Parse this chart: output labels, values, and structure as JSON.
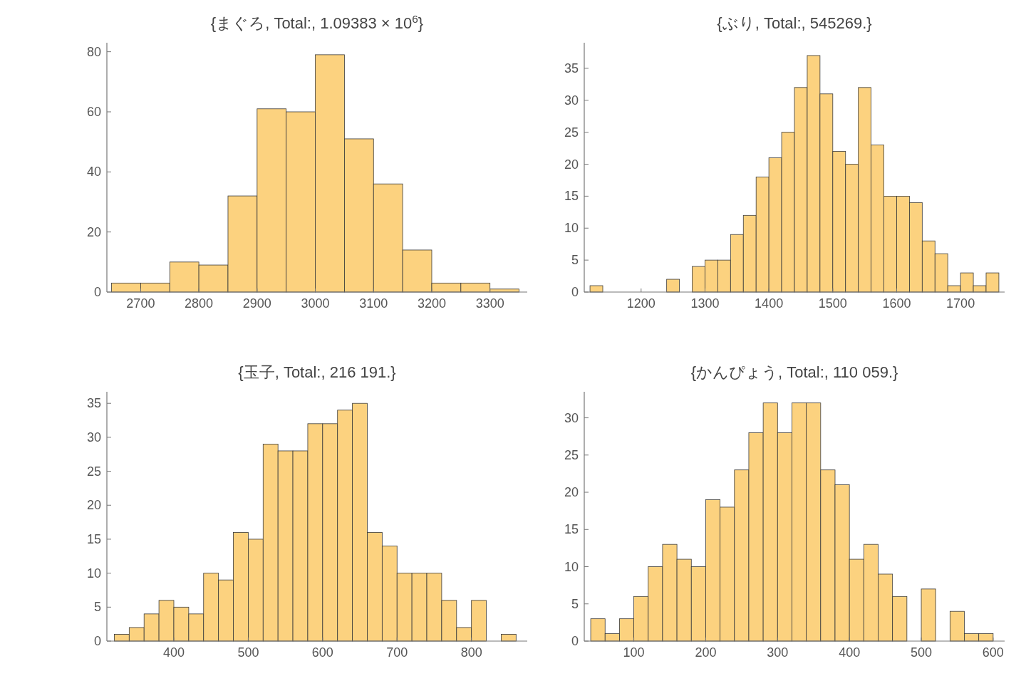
{
  "chart_data": [
    {
      "type": "histogram",
      "title": "{まぐろ, Total:, 1.09383 × 10$^{6}$}",
      "color": "#fcd27f",
      "grid": false,
      "bins": [
        2650,
        2700,
        2750,
        2800,
        2850,
        2900,
        2950,
        3000,
        3050,
        3100,
        3150,
        3200,
        3250,
        3300,
        3350
      ],
      "values": [
        3,
        3,
        10,
        9,
        32,
        61,
        60,
        79,
        51,
        36,
        14,
        3,
        3,
        1
      ],
      "xlim": [
        2642,
        3364
      ],
      "ylim": [
        0,
        83
      ],
      "xticks": [
        2700,
        2800,
        2900,
        3000,
        3100,
        3200,
        3300
      ],
      "yticks": [
        0,
        20,
        40,
        60,
        80
      ]
    },
    {
      "type": "histogram",
      "title": "{ぶり, Total:, 545269.}",
      "color": "#fcd27f",
      "grid": false,
      "bins": [
        1120,
        1140,
        1160,
        1180,
        1200,
        1220,
        1240,
        1260,
        1280,
        1300,
        1320,
        1340,
        1360,
        1380,
        1400,
        1420,
        1440,
        1460,
        1480,
        1500,
        1520,
        1540,
        1560,
        1580,
        1600,
        1620,
        1640,
        1660,
        1680,
        1700,
        1720,
        1740,
        1760
      ],
      "values": [
        1,
        0,
        0,
        0,
        0,
        0,
        2,
        0,
        4,
        5,
        5,
        9,
        12,
        18,
        21,
        25,
        32,
        37,
        31,
        22,
        20,
        32,
        23,
        15,
        15,
        14,
        8,
        6,
        1,
        3,
        1,
        3
      ],
      "xlim": [
        1111,
        1769
      ],
      "ylim": [
        0,
        39
      ],
      "xticks": [
        1200,
        1300,
        1400,
        1500,
        1600,
        1700
      ],
      "yticks": [
        0,
        5,
        10,
        15,
        20,
        25,
        30,
        35
      ]
    },
    {
      "type": "histogram",
      "title": "{玉子, Total:, 216 191.}",
      "color": "#fcd27f",
      "grid": false,
      "bins": [
        320,
        340,
        360,
        380,
        400,
        420,
        440,
        460,
        480,
        500,
        520,
        540,
        560,
        580,
        600,
        620,
        640,
        660,
        680,
        700,
        720,
        740,
        760,
        780,
        800,
        820,
        840,
        860
      ],
      "values": [
        1,
        2,
        4,
        6,
        5,
        4,
        10,
        9,
        16,
        15,
        29,
        28,
        28,
        32,
        32,
        34,
        35,
        16,
        14,
        10,
        10,
        10,
        6,
        2,
        6,
        0,
        1
      ],
      "xlim": [
        310,
        875
      ],
      "ylim": [
        0,
        36.7
      ],
      "xticks": [
        400,
        500,
        600,
        700,
        800
      ],
      "yticks": [
        0,
        5,
        10,
        15,
        20,
        25,
        30,
        35
      ]
    },
    {
      "type": "histogram",
      "title": "{かんぴょう, Total:, 110 059.}",
      "color": "#fcd27f",
      "grid": false,
      "bins": [
        40,
        60,
        80,
        100,
        120,
        140,
        160,
        180,
        200,
        220,
        240,
        260,
        280,
        300,
        320,
        340,
        360,
        380,
        400,
        420,
        440,
        460,
        480,
        500,
        520,
        540,
        560,
        580,
        600
      ],
      "values": [
        3,
        1,
        3,
        6,
        10,
        13,
        11,
        10,
        19,
        18,
        23,
        28,
        32,
        28,
        32,
        32,
        23,
        21,
        11,
        13,
        9,
        6,
        0,
        7,
        0,
        4,
        1,
        1
      ],
      "xlim": [
        31,
        616
      ],
      "ylim": [
        0,
        33.5
      ],
      "xticks": [
        100,
        200,
        300,
        400,
        500,
        600
      ],
      "yticks": [
        0,
        5,
        10,
        15,
        20,
        25,
        30
      ]
    }
  ]
}
